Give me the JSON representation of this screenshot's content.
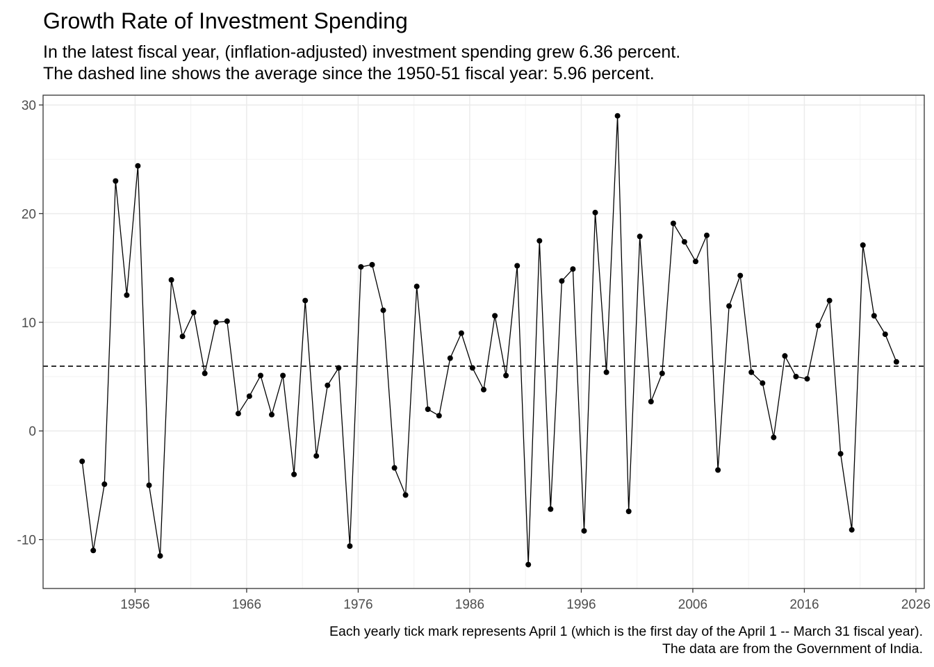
{
  "chart_data": {
    "type": "line",
    "title": "Growth Rate of Investment Spending",
    "subtitle_lines": [
      "In the latest fiscal year, (inflation-adjusted) investment spending grew 6.36 percent.",
      "The dashed line shows the average since the 1950-51 fiscal year: 5.96 percent."
    ],
    "caption_lines": [
      "Each yearly tick mark represents April 1 (which is the first day of the April 1 -- March 31 fiscal year).",
      "The data are from the Government of India."
    ],
    "xlabel": "",
    "ylabel": "",
    "x_ticks": [
      "1956",
      "1966",
      "1976",
      "1986",
      "1996",
      "2006",
      "2016",
      "2026"
    ],
    "y_ticks": [
      "30",
      "20",
      "10",
      "0",
      "-10"
    ],
    "xlim": [
      "1947-10-01",
      "2026-10-01"
    ],
    "ylim": [
      -14.5,
      30.9
    ],
    "grid": true,
    "mean_line": 5.96,
    "series": [
      {
        "x": [
          "1951-04-01",
          "1952-04-01",
          "1953-04-01",
          "1954-04-01",
          "1955-04-01",
          "1956-04-01",
          "1957-04-01",
          "1958-04-01",
          "1959-04-01",
          "1960-04-01",
          "1961-04-01",
          "1962-04-01",
          "1963-04-01",
          "1964-04-01",
          "1965-04-01",
          "1966-04-01",
          "1967-04-01",
          "1968-04-01",
          "1969-04-01",
          "1970-04-01",
          "1971-04-01",
          "1972-04-01",
          "1973-04-01",
          "1974-04-01",
          "1975-04-01",
          "1976-04-01",
          "1977-04-01",
          "1978-04-01",
          "1979-04-01",
          "1980-04-01",
          "1981-04-01",
          "1982-04-01",
          "1983-04-01",
          "1984-04-01",
          "1985-04-01",
          "1986-04-01",
          "1987-04-01",
          "1988-04-01",
          "1989-04-01",
          "1990-04-01",
          "1991-04-01",
          "1992-04-01",
          "1993-04-01",
          "1994-04-01",
          "1995-04-01",
          "1996-04-01",
          "1997-04-01",
          "1998-04-01",
          "1999-04-01",
          "2000-04-01",
          "2001-04-01",
          "2002-04-01",
          "2003-04-01",
          "2004-04-01",
          "2005-04-01",
          "2006-04-01",
          "2007-04-01",
          "2008-04-01",
          "2009-04-01",
          "2010-04-01",
          "2011-04-01",
          "2012-04-01",
          "2013-04-01",
          "2014-04-01",
          "2015-04-01",
          "2016-04-01",
          "2017-04-01",
          "2018-04-01",
          "2019-04-01",
          "2020-04-01",
          "2021-04-01",
          "2022-04-01",
          "2023-04-01",
          "2024-04-01"
        ],
        "values": [
          -2.8,
          -11.0,
          -4.9,
          23.0,
          12.5,
          24.4,
          -5.0,
          -11.5,
          13.9,
          8.7,
          10.9,
          5.3,
          10.0,
          10.1,
          1.6,
          3.2,
          5.1,
          1.5,
          5.1,
          -4.0,
          12.0,
          -2.3,
          4.2,
          5.8,
          -10.6,
          15.1,
          15.3,
          11.1,
          -3.4,
          -5.9,
          13.3,
          2.0,
          1.4,
          6.7,
          9.0,
          5.8,
          3.8,
          10.6,
          5.1,
          15.2,
          -12.3,
          17.5,
          -7.2,
          13.8,
          14.9,
          -9.2,
          20.1,
          5.4,
          29.0,
          -7.4,
          17.9,
          2.7,
          5.3,
          19.1,
          17.4,
          15.6,
          18.0,
          -3.6,
          11.5,
          14.3,
          5.4,
          4.4,
          -0.6,
          6.9,
          5.0,
          4.8,
          9.7,
          12.0,
          -2.1,
          -9.1,
          17.1,
          10.6,
          8.9,
          6.36
        ]
      }
    ]
  }
}
